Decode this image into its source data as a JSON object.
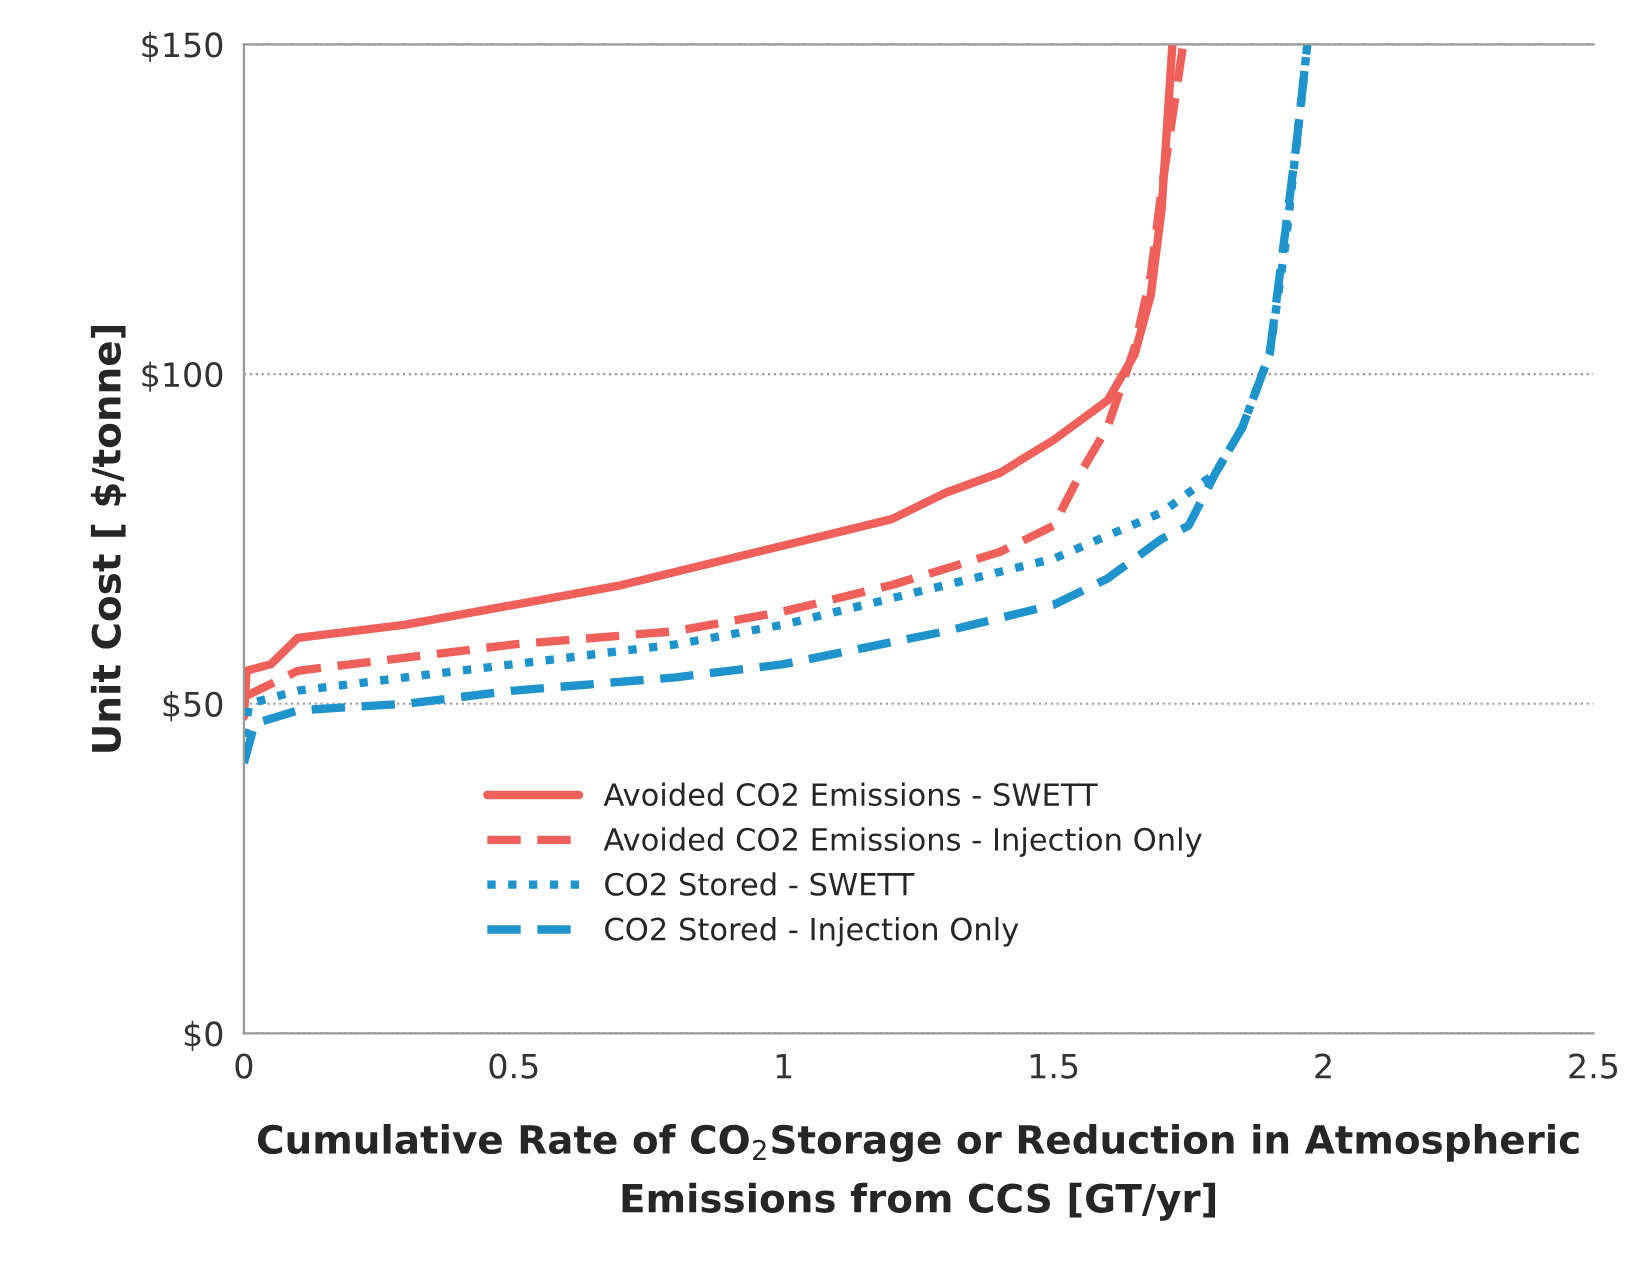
{
  "chart_data": {
    "type": "line",
    "xlabel": "Cumulative Rate of CO$_{2}$Storage or Reduction in Atmospheric\nEmissions from CCS [GT/yr]",
    "ylabel": "Unit Cost [ $/tonne]",
    "xlim": [
      0,
      2.5
    ],
    "xticks": [
      0,
      0.5,
      1,
      1.5,
      2,
      2.5
    ],
    "ylim": [
      0,
      150
    ],
    "yticks": [
      {
        "value": 0,
        "label": "$0"
      },
      {
        "value": 50,
        "label": "$50"
      },
      {
        "value": 100,
        "label": "$100"
      },
      {
        "value": 150,
        "label": "$150"
      }
    ],
    "grid": "y",
    "legend": "lower left",
    "series": [
      {
        "name": "Avoided CO2 Emissions - SWETT",
        "color": "#f0605a",
        "line_style": "solid",
        "x": [
          0,
          0.005,
          0.05,
          0.1,
          0.3,
          0.5,
          0.7,
          1.0,
          1.2,
          1.3,
          1.4,
          1.5,
          1.6,
          1.65,
          1.68,
          1.7,
          1.72
        ],
        "values": [
          48,
          55,
          56,
          60,
          62,
          65,
          68,
          74,
          78,
          82,
          85,
          90,
          96,
          103,
          112,
          125,
          150
        ]
      },
      {
        "name": "Avoided CO2 Emissions - Injection Only",
        "color": "#f0605a",
        "line_style": "dashed",
        "x": [
          0,
          0.1,
          0.3,
          0.5,
          0.8,
          1.0,
          1.2,
          1.4,
          1.5,
          1.55,
          1.6,
          1.65,
          1.68,
          1.7,
          1.74
        ],
        "values": [
          51,
          55,
          57,
          59,
          61,
          64,
          68,
          73,
          77,
          85,
          92,
          104,
          115,
          128,
          150
        ]
      },
      {
        "name": "CO2 Stored - SWETT",
        "color": "#1f93cc",
        "line_style": "dotted",
        "x": [
          0,
          0.01,
          0.1,
          0.3,
          0.5,
          0.8,
          1.0,
          1.3,
          1.5,
          1.7,
          1.8,
          1.85,
          1.9,
          1.93,
          1.95,
          1.97
        ],
        "values": [
          45,
          50,
          52,
          54,
          56,
          59,
          62,
          68,
          72,
          79,
          85,
          92,
          103,
          120,
          135,
          150
        ]
      },
      {
        "name": "CO2 Stored - Injection Only",
        "color": "#1f93cc",
        "line_style": "dashed",
        "x": [
          0,
          0.02,
          0.1,
          0.3,
          0.5,
          0.8,
          1.0,
          1.3,
          1.5,
          1.6,
          1.7,
          1.75,
          1.8,
          1.85,
          1.9,
          1.95,
          1.97
        ],
        "values": [
          41,
          47,
          49,
          50,
          52,
          54,
          56,
          61,
          65,
          69,
          75,
          77,
          85,
          92,
          103,
          135,
          150
        ]
      }
    ]
  }
}
